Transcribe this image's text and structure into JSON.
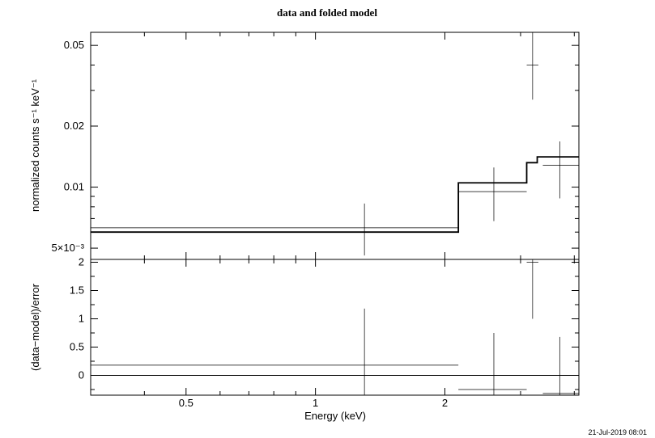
{
  "chart_data": {
    "type": "scatter",
    "title": "data and folded model",
    "timestamp": "21-Jul-2019 08:01",
    "xlabel": "Energy (keV)",
    "x_scale": "log",
    "xlim": [
      0.3,
      4.1
    ],
    "x_ticks": [
      {
        "value": 0.5,
        "label": "0.5"
      },
      {
        "value": 1,
        "label": "1"
      },
      {
        "value": 2,
        "label": "2"
      }
    ],
    "top_panel": {
      "ylabel": "normalized counts s⁻¹ keV⁻¹",
      "y_scale": "log",
      "ylim": [
        0.0044,
        0.058
      ],
      "y_ticks": [
        {
          "value": 0.005,
          "label": "5×10⁻³"
        },
        {
          "value": 0.01,
          "label": "0.01"
        },
        {
          "value": 0.02,
          "label": "0.02"
        },
        {
          "value": 0.05,
          "label": "0.05"
        }
      ],
      "data": [
        {
          "x_lo": 0.3,
          "x_hi": 2.15,
          "x": 1.3,
          "y": 0.0063,
          "y_lo": 0.0046,
          "y_hi": 0.0083
        },
        {
          "x_lo": 2.15,
          "x_hi": 3.1,
          "x": 2.6,
          "y": 0.0095,
          "y_lo": 0.0068,
          "y_hi": 0.0125
        },
        {
          "x_lo": 3.38,
          "x_hi": 4.1,
          "x": 3.7,
          "y": 0.0128,
          "y_lo": 0.0088,
          "y_hi": 0.0168
        },
        {
          "x_lo": 3.1,
          "x_hi": 3.3,
          "x": 3.2,
          "y": 0.04,
          "y_lo": 0.027,
          "y_hi": 0.058
        }
      ],
      "model": [
        {
          "x_lo": 0.3,
          "x_hi": 2.15,
          "y": 0.006
        },
        {
          "x_lo": 2.15,
          "x_hi": 3.1,
          "y": 0.0105
        },
        {
          "x_lo": 3.1,
          "x_hi": 3.28,
          "y": 0.0132
        },
        {
          "x_lo": 3.28,
          "x_hi": 4.1,
          "y": 0.0141
        }
      ]
    },
    "bottom_panel": {
      "ylabel": "(data−model)/error",
      "y_scale": "linear",
      "ylim": [
        -0.35,
        2.05
      ],
      "y_ticks": [
        {
          "value": 0,
          "label": "0"
        },
        {
          "value": 0.5,
          "label": "0.5"
        },
        {
          "value": 1,
          "label": "1"
        },
        {
          "value": 1.5,
          "label": "1.5"
        },
        {
          "value": 2,
          "label": "2"
        }
      ],
      "zero_line": 0,
      "data": [
        {
          "x_lo": 0.3,
          "x_hi": 2.15,
          "x": 1.3,
          "y": 0.18,
          "y_lo": -0.35,
          "y_hi": 1.18
        },
        {
          "x_lo": 2.15,
          "x_hi": 3.1,
          "x": 2.6,
          "y": -0.25,
          "y_lo": -0.35,
          "y_hi": 0.75
        },
        {
          "x_lo": 3.38,
          "x_hi": 4.1,
          "x": 3.7,
          "y": -0.32,
          "y_lo": -0.35,
          "y_hi": 0.68
        },
        {
          "x_lo": 3.1,
          "x_hi": 3.3,
          "x": 3.2,
          "y": 2.0,
          "y_lo": 1.0,
          "y_hi": 2.05
        }
      ]
    }
  }
}
